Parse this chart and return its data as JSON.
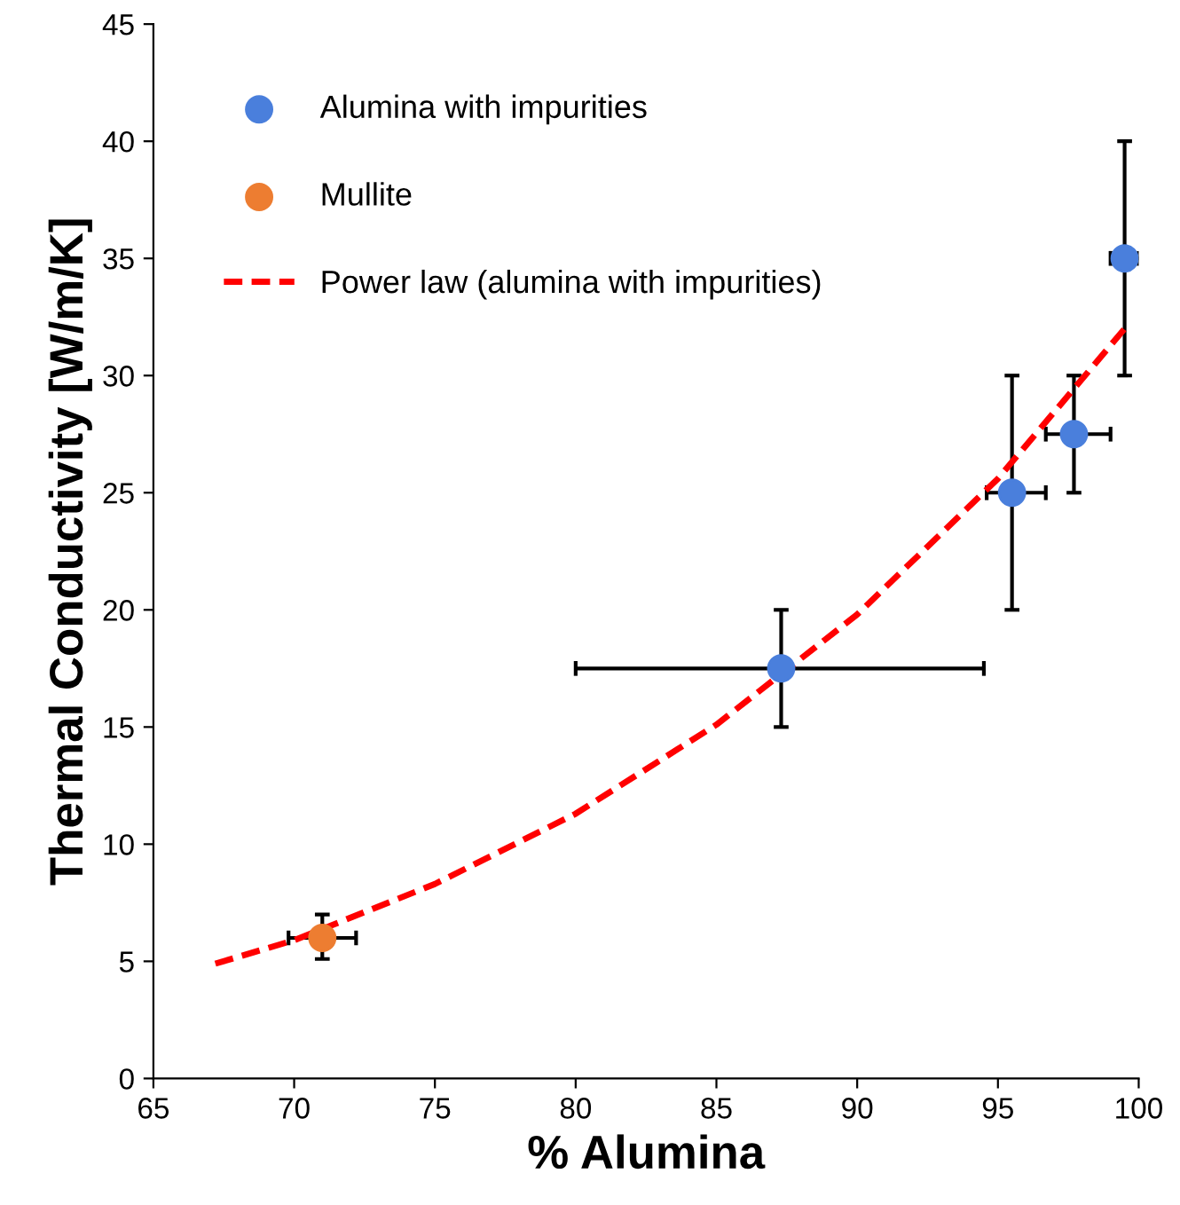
{
  "chart_data": {
    "type": "scatter",
    "xlabel": "% Alumina",
    "ylabel": "Thermal Conductivity [W/m/K]",
    "xlim": [
      65,
      100
    ],
    "xticks": [
      65,
      70,
      75,
      80,
      85,
      90,
      95,
      100
    ],
    "ylim": [
      0,
      45
    ],
    "yticks": [
      0,
      5,
      10,
      15,
      20,
      25,
      30,
      35,
      40,
      45
    ],
    "grid": false,
    "legend": "top left",
    "series": [
      {
        "name": "Alumina with impurities",
        "marker": "circle",
        "color": "#4a7fdc",
        "x": [
          87.3,
          95.5,
          97.7,
          99.5
        ],
        "values": [
          17.5,
          25,
          27.5,
          35
        ],
        "errors": [
          [
            15,
            20
          ],
          [
            20,
            30
          ],
          [
            25,
            30
          ],
          [
            30,
            40
          ]
        ],
        "xerrors": [
          [
            80,
            94.5
          ],
          [
            94.6,
            96.7
          ],
          [
            96.7,
            99.0
          ],
          [
            99.0,
            100
          ]
        ]
      },
      {
        "name": "Mullite",
        "marker": "circle",
        "color": "#ed7d31",
        "x": [
          71.0
        ],
        "values": [
          6.0
        ],
        "errors": [
          [
            5.1,
            7.0
          ]
        ],
        "xerrors": [
          [
            69.8,
            72.2
          ]
        ]
      },
      {
        "name": "Power law (alumina with impurities)",
        "type": "line",
        "marker": "none",
        "line_style": "dashed",
        "color": "#ff0000",
        "x": [
          67.2,
          70,
          75,
          80,
          85,
          90,
          95,
          99.5
        ],
        "values": [
          4.9,
          5.9,
          8.3,
          11.3,
          15.1,
          19.8,
          25.6,
          32.0
        ]
      }
    ]
  }
}
